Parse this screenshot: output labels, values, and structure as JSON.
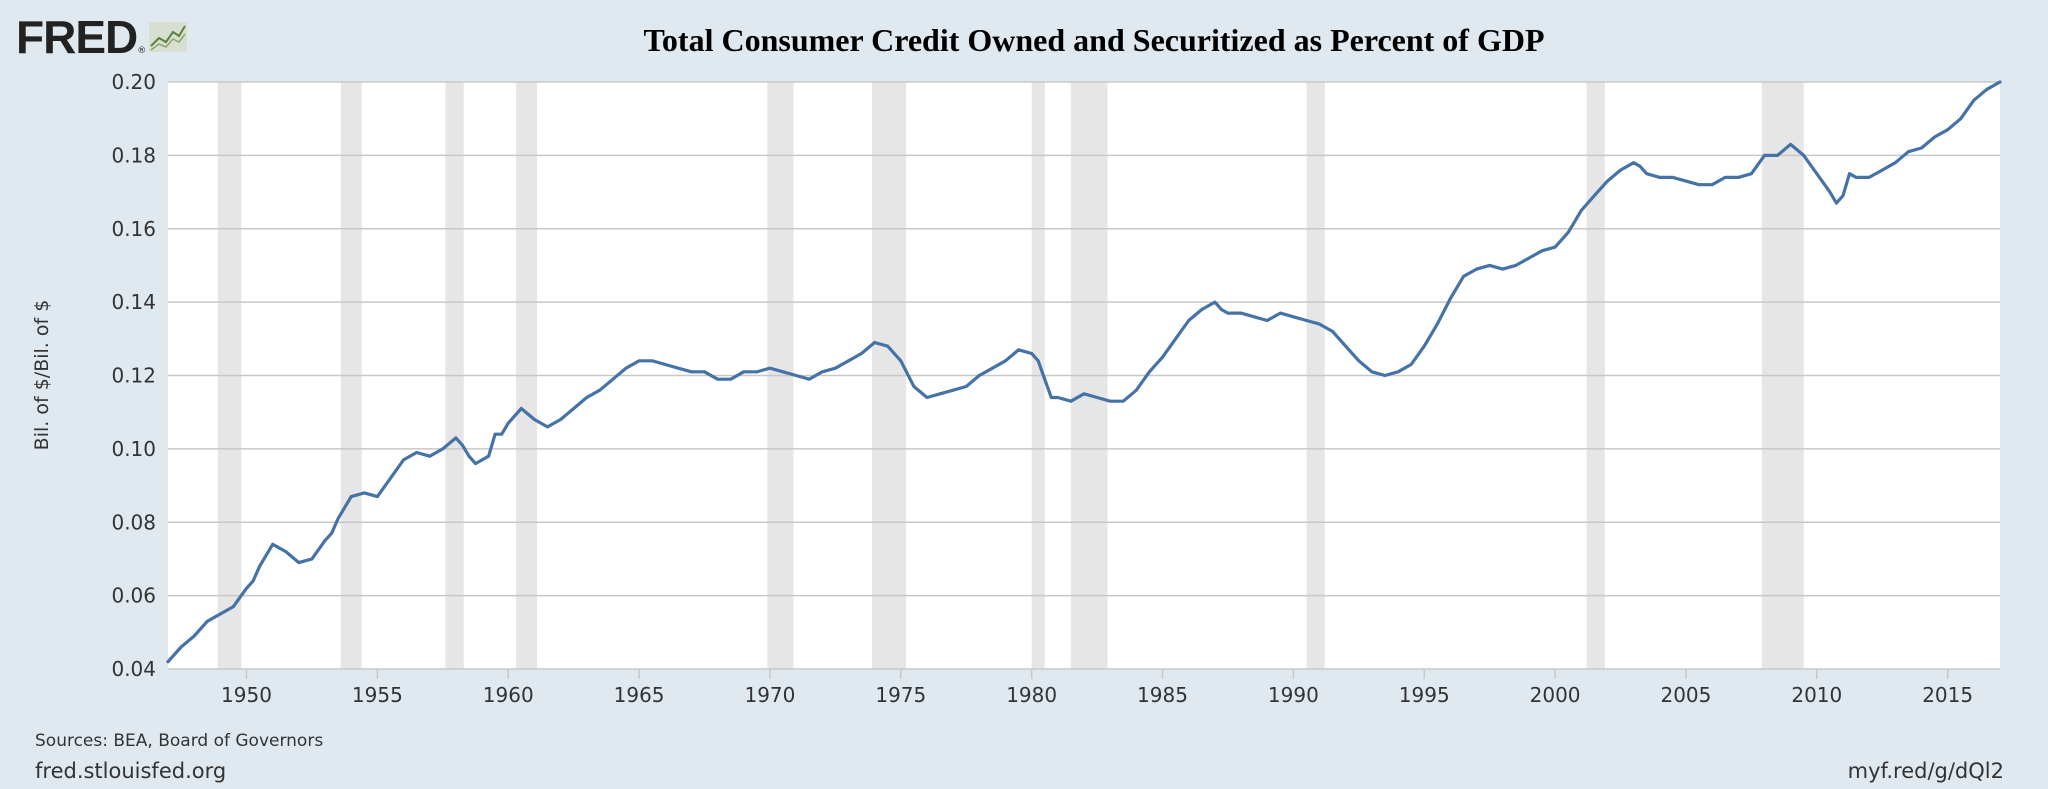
{
  "brand": {
    "logo_text": "FRED",
    "registered": "®"
  },
  "footer": {
    "sources": "Sources: BEA, Board of Governors",
    "site": "fred.stlouisfed.org",
    "short_link": "myf.red/g/dQl2"
  },
  "colors": {
    "background": "#e1e9f0",
    "plot_bg": "#ffffff",
    "line": "#4572a7",
    "recession": "#e6e6e6",
    "grid": "#c8c8c8"
  },
  "chart_data": {
    "type": "line",
    "title": "Total Consumer Credit Owned and Securitized as Percent of GDP",
    "ylabel": "Bil. of $/Bil. of $",
    "xlabel": "",
    "xlim": [
      1947.0,
      2017.0
    ],
    "ylim": [
      0.04,
      0.2
    ],
    "yticks": [
      0.04,
      0.06,
      0.08,
      0.1,
      0.12,
      0.14,
      0.16,
      0.18,
      0.2
    ],
    "ytick_labels": [
      "0.04",
      "0.06",
      "0.08",
      "0.10",
      "0.12",
      "0.14",
      "0.16",
      "0.18",
      "0.20"
    ],
    "xticks": [
      1950,
      1955,
      1960,
      1965,
      1970,
      1975,
      1980,
      1985,
      1990,
      1995,
      2000,
      2005,
      2010,
      2015
    ],
    "xtick_labels": [
      "1950",
      "1955",
      "1960",
      "1965",
      "1970",
      "1975",
      "1980",
      "1985",
      "1990",
      "1995",
      "2000",
      "2005",
      "2010",
      "2015"
    ],
    "grid": "horizontal",
    "recessions": [
      [
        1948.9,
        1949.8
      ],
      [
        1953.6,
        1954.4
      ],
      [
        1957.6,
        1958.3
      ],
      [
        1960.3,
        1961.1
      ],
      [
        1969.9,
        1970.9
      ],
      [
        1973.9,
        1975.2
      ],
      [
        1980.0,
        1980.5
      ],
      [
        1981.5,
        1982.9
      ],
      [
        1990.5,
        1991.2
      ],
      [
        2001.2,
        2001.9
      ],
      [
        2007.9,
        2009.5
      ]
    ],
    "series": [
      {
        "points": [
          [
            1947.0,
            0.042
          ],
          [
            1947.5,
            0.046
          ],
          [
            1948.0,
            0.049
          ],
          [
            1948.5,
            0.053
          ],
          [
            1949.0,
            0.055
          ],
          [
            1949.5,
            0.057
          ],
          [
            1950.0,
            0.062
          ],
          [
            1950.25,
            0.064
          ],
          [
            1950.5,
            0.068
          ],
          [
            1951.0,
            0.074
          ],
          [
            1951.5,
            0.072
          ],
          [
            1952.0,
            0.069
          ],
          [
            1952.5,
            0.07
          ],
          [
            1953.0,
            0.075
          ],
          [
            1953.25,
            0.077
          ],
          [
            1953.5,
            0.081
          ],
          [
            1954.0,
            0.087
          ],
          [
            1954.5,
            0.088
          ],
          [
            1955.0,
            0.087
          ],
          [
            1955.5,
            0.092
          ],
          [
            1956.0,
            0.097
          ],
          [
            1956.5,
            0.099
          ],
          [
            1957.0,
            0.098
          ],
          [
            1957.5,
            0.1
          ],
          [
            1958.0,
            0.103
          ],
          [
            1958.25,
            0.101
          ],
          [
            1958.5,
            0.098
          ],
          [
            1958.75,
            0.096
          ],
          [
            1959.0,
            0.097
          ],
          [
            1959.25,
            0.098
          ],
          [
            1959.5,
            0.104
          ],
          [
            1959.75,
            0.104
          ],
          [
            1960.0,
            0.107
          ],
          [
            1960.5,
            0.111
          ],
          [
            1961.0,
            0.108
          ],
          [
            1961.5,
            0.106
          ],
          [
            1962.0,
            0.108
          ],
          [
            1962.5,
            0.111
          ],
          [
            1963.0,
            0.114
          ],
          [
            1963.5,
            0.116
          ],
          [
            1964.0,
            0.119
          ],
          [
            1964.5,
            0.122
          ],
          [
            1965.0,
            0.124
          ],
          [
            1965.5,
            0.124
          ],
          [
            1966.0,
            0.123
          ],
          [
            1966.5,
            0.122
          ],
          [
            1967.0,
            0.121
          ],
          [
            1967.5,
            0.121
          ],
          [
            1968.0,
            0.119
          ],
          [
            1968.5,
            0.119
          ],
          [
            1969.0,
            0.121
          ],
          [
            1969.5,
            0.121
          ],
          [
            1970.0,
            0.122
          ],
          [
            1970.5,
            0.121
          ],
          [
            1971.0,
            0.12
          ],
          [
            1971.5,
            0.119
          ],
          [
            1972.0,
            0.121
          ],
          [
            1972.5,
            0.122
          ],
          [
            1973.0,
            0.124
          ],
          [
            1973.5,
            0.126
          ],
          [
            1974.0,
            0.129
          ],
          [
            1974.5,
            0.128
          ],
          [
            1975.0,
            0.124
          ],
          [
            1975.5,
            0.117
          ],
          [
            1976.0,
            0.114
          ],
          [
            1976.5,
            0.115
          ],
          [
            1977.0,
            0.116
          ],
          [
            1977.5,
            0.117
          ],
          [
            1978.0,
            0.12
          ],
          [
            1978.5,
            0.122
          ],
          [
            1979.0,
            0.124
          ],
          [
            1979.5,
            0.127
          ],
          [
            1980.0,
            0.126
          ],
          [
            1980.25,
            0.124
          ],
          [
            1980.5,
            0.119
          ],
          [
            1980.75,
            0.114
          ],
          [
            1981.0,
            0.114
          ],
          [
            1981.5,
            0.113
          ],
          [
            1982.0,
            0.115
          ],
          [
            1982.5,
            0.114
          ],
          [
            1983.0,
            0.113
          ],
          [
            1983.5,
            0.113
          ],
          [
            1984.0,
            0.116
          ],
          [
            1984.5,
            0.121
          ],
          [
            1985.0,
            0.125
          ],
          [
            1985.5,
            0.13
          ],
          [
            1986.0,
            0.135
          ],
          [
            1986.5,
            0.138
          ],
          [
            1987.0,
            0.14
          ],
          [
            1987.25,
            0.138
          ],
          [
            1987.5,
            0.137
          ],
          [
            1988.0,
            0.137
          ],
          [
            1988.5,
            0.136
          ],
          [
            1989.0,
            0.135
          ],
          [
            1989.5,
            0.137
          ],
          [
            1990.0,
            0.136
          ],
          [
            1990.5,
            0.135
          ],
          [
            1991.0,
            0.134
          ],
          [
            1991.5,
            0.132
          ],
          [
            1992.0,
            0.128
          ],
          [
            1992.5,
            0.124
          ],
          [
            1993.0,
            0.121
          ],
          [
            1993.5,
            0.12
          ],
          [
            1994.0,
            0.121
          ],
          [
            1994.5,
            0.123
          ],
          [
            1995.0,
            0.128
          ],
          [
            1995.5,
            0.134
          ],
          [
            1996.0,
            0.141
          ],
          [
            1996.5,
            0.147
          ],
          [
            1997.0,
            0.149
          ],
          [
            1997.5,
            0.15
          ],
          [
            1998.0,
            0.149
          ],
          [
            1998.5,
            0.15
          ],
          [
            1999.0,
            0.152
          ],
          [
            1999.5,
            0.154
          ],
          [
            2000.0,
            0.155
          ],
          [
            2000.5,
            0.159
          ],
          [
            2001.0,
            0.165
          ],
          [
            2001.5,
            0.169
          ],
          [
            2002.0,
            0.173
          ],
          [
            2002.5,
            0.176
          ],
          [
            2003.0,
            0.178
          ],
          [
            2003.25,
            0.177
          ],
          [
            2003.5,
            0.175
          ],
          [
            2004.0,
            0.174
          ],
          [
            2004.5,
            0.174
          ],
          [
            2005.0,
            0.173
          ],
          [
            2005.5,
            0.172
          ],
          [
            2006.0,
            0.172
          ],
          [
            2006.5,
            0.174
          ],
          [
            2007.0,
            0.174
          ],
          [
            2007.5,
            0.175
          ],
          [
            2008.0,
            0.18
          ],
          [
            2008.5,
            0.18
          ],
          [
            2009.0,
            0.183
          ],
          [
            2009.5,
            0.18
          ],
          [
            2010.0,
            0.175
          ],
          [
            2010.5,
            0.17
          ],
          [
            2010.75,
            0.167
          ],
          [
            2011.0,
            0.169
          ],
          [
            2011.25,
            0.175
          ],
          [
            2011.5,
            0.174
          ],
          [
            2012.0,
            0.174
          ],
          [
            2012.5,
            0.176
          ],
          [
            2013.0,
            0.178
          ],
          [
            2013.5,
            0.181
          ],
          [
            2014.0,
            0.182
          ],
          [
            2014.5,
            0.185
          ],
          [
            2015.0,
            0.187
          ],
          [
            2015.5,
            0.19
          ],
          [
            2016.0,
            0.195
          ],
          [
            2016.5,
            0.198
          ],
          [
            2017.0,
            0.2
          ]
        ]
      }
    ]
  }
}
